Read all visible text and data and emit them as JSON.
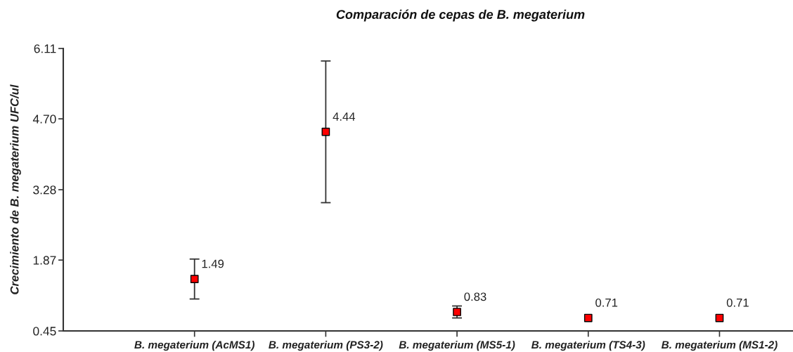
{
  "chart_data": {
    "type": "scatter",
    "title": "Comparación de cepas de B. megaterium",
    "ylabel": "Crecimiento de B. megaterium UFC/ul",
    "categories": [
      "B. megaterium (AcMS1)",
      "B. megaterium (PS3-2)",
      "B. megaterium (MS5-1)",
      "B. megaterium (TS4-3)",
      "B. megaterium (MS1-2)"
    ],
    "values": [
      1.49,
      4.44,
      0.83,
      0.71,
      0.71
    ],
    "errors": [
      0.4,
      1.42,
      0.12,
      null,
      null
    ],
    "color": "#ff0000",
    "marker": "square",
    "data_labels": true,
    "ylim": [
      0.45,
      6.11
    ],
    "yticks": [
      0.45,
      1.87,
      3.28,
      {
        "value": 4.7,
        "label": "4.70"
      },
      6.11
    ]
  }
}
